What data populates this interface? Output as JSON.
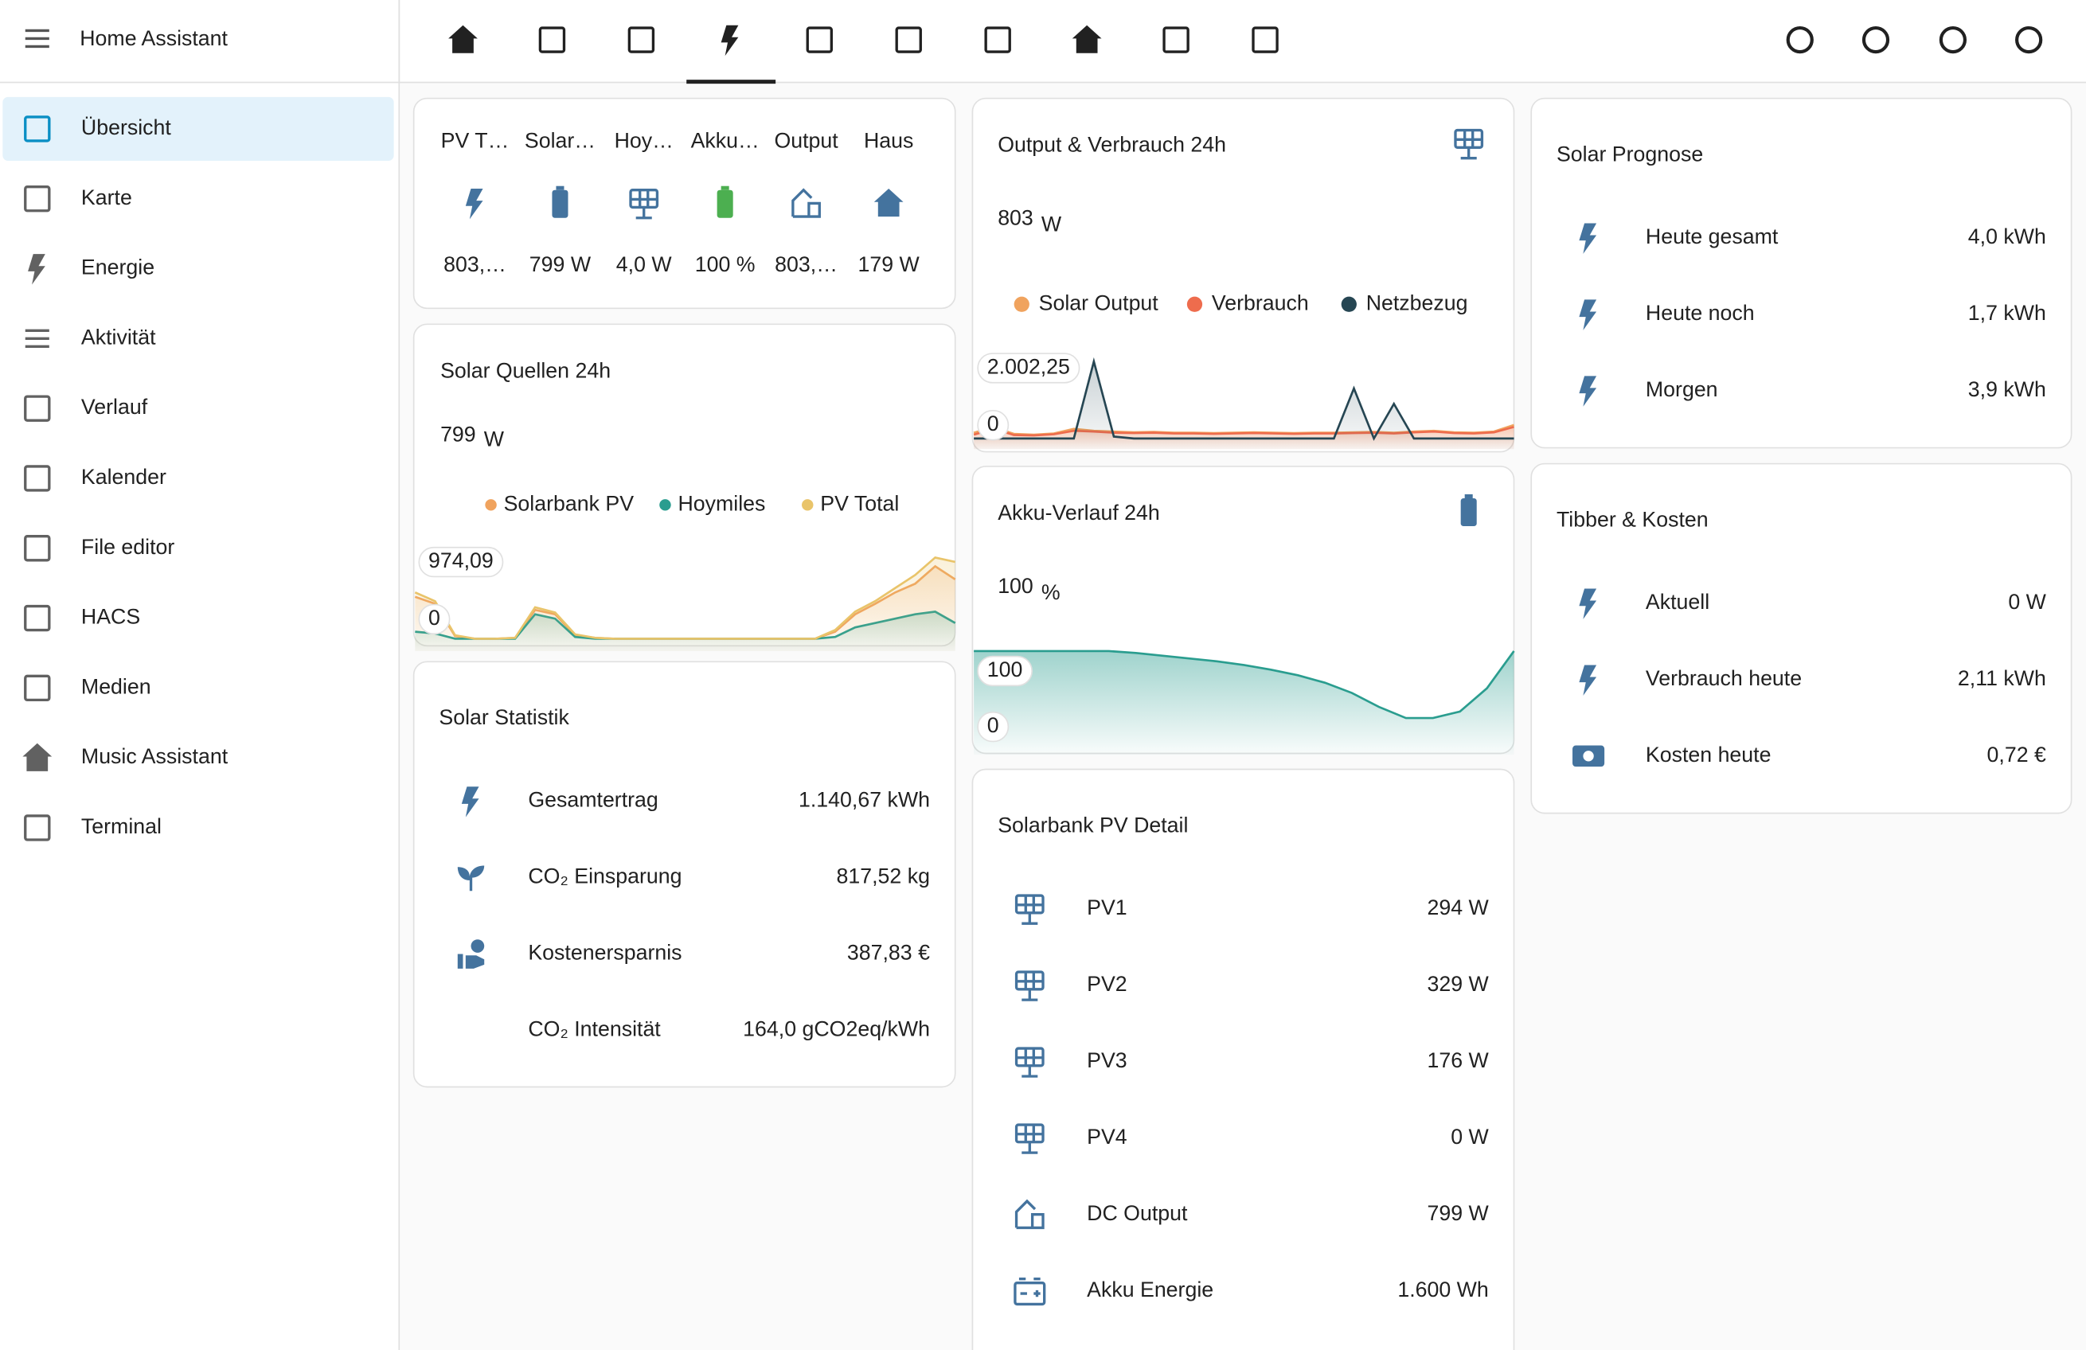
{
  "sidebar": {
    "title": "Home Assistant",
    "items": [
      "Übersicht",
      "Karte",
      "Energie",
      "Aktivität",
      "Verlauf",
      "Kalender",
      "File editor",
      "HACS",
      "Medien",
      "Music Assistant",
      "Terminal"
    ]
  },
  "tiles": [
    {
      "label": "PV T…",
      "value": "803,…"
    },
    {
      "label": "Solar…",
      "value": "799 W"
    },
    {
      "label": "Hoy…",
      "value": "4,0 W"
    },
    {
      "label": "Akku…",
      "value": "100 %"
    },
    {
      "label": "Output",
      "value": "803,…"
    },
    {
      "label": "Haus",
      "value": "179 W"
    }
  ],
  "charts": {
    "output": {
      "title": "Output & Verbrauch 24h",
      "value": "803",
      "unit": "W",
      "yticks": [
        0,
        {
          "value": 2002.25,
          "label": "2.002,25"
        }
      ],
      "series": [
        {
          "name": "Solar Output",
          "color": "#f0a35e",
          "values": [
            150,
            300,
            120,
            100,
            130,
            250,
            200,
            180,
            160,
            170,
            150,
            150,
            140,
            150,
            160,
            150,
            140,
            150,
            150,
            160,
            170,
            150,
            180,
            200,
            160,
            150,
            180,
            350
          ]
        },
        {
          "name": "Verbrauch",
          "color": "#ee6c4d",
          "values": [
            100,
            250,
            90,
            80,
            110,
            200,
            180,
            150,
            140,
            150,
            130,
            130,
            120,
            130,
            140,
            130,
            120,
            130,
            130,
            140,
            150,
            130,
            160,
            180,
            140,
            130,
            160,
            300
          ]
        },
        {
          "name": "Netzbezug",
          "color": "#264653",
          "values": [
            0,
            0,
            0,
            0,
            0,
            0,
            2000,
            50,
            0,
            0,
            0,
            0,
            0,
            0,
            0,
            0,
            0,
            0,
            0,
            1300,
            0,
            900,
            0,
            0,
            0,
            0,
            0,
            0
          ]
        }
      ]
    },
    "quellen": {
      "title": "Solar Quellen 24h",
      "value": "799",
      "unit": "W",
      "yticks": [
        0,
        {
          "value": 974.09,
          "label": "974,09"
        }
      ],
      "series": [
        {
          "name": "Solarbank PV",
          "color": "#f0a35e",
          "values": [
            500,
            420,
            50,
            20,
            20,
            30,
            350,
            300,
            60,
            30,
            20,
            20,
            20,
            20,
            20,
            20,
            20,
            20,
            20,
            20,
            20,
            100,
            300,
            420,
            550,
            650,
            850,
            700
          ]
        },
        {
          "name": "Hoymiles",
          "color": "#2a9d8f",
          "values": [
            100,
            80,
            20,
            20,
            20,
            20,
            300,
            250,
            40,
            20,
            20,
            20,
            20,
            20,
            20,
            20,
            20,
            20,
            20,
            20,
            20,
            40,
            150,
            200,
            250,
            300,
            330,
            200
          ]
        },
        {
          "name": "PV Total",
          "color": "#e9c46a",
          "values": [
            550,
            450,
            60,
            20,
            20,
            30,
            380,
            320,
            70,
            30,
            20,
            20,
            20,
            20,
            20,
            20,
            20,
            20,
            20,
            20,
            20,
            120,
            330,
            450,
            600,
            750,
            950,
            900
          ]
        }
      ]
    },
    "akku": {
      "title": "Akku-Verlauf 24h",
      "value": "100",
      "unit": "%",
      "yticks": [
        0,
        100
      ],
      "series": [
        {
          "color": "#2a9d8f",
          "values": [
            100,
            100,
            100,
            100,
            100,
            100,
            98,
            95,
            92,
            89,
            85,
            80,
            74,
            66,
            55,
            40,
            28,
            28,
            35,
            60,
            100
          ]
        }
      ]
    }
  },
  "cards": {
    "statistik": {
      "title": "Solar Statistik",
      "rows": [
        {
          "name": "Gesamtertrag",
          "value": "1.140,67 kWh"
        },
        {
          "name": "CO₂ Einsparung",
          "value": "817,52 kg"
        },
        {
          "name": "Kostenersparnis",
          "value": "387,83 €"
        },
        {
          "name": "CO₂ Intensität",
          "value": "164,0 gCO2eq/kWh"
        }
      ]
    },
    "solarbank": {
      "title": "Solarbank PV Detail",
      "rows": [
        {
          "name": "PV1",
          "value": "294 W"
        },
        {
          "name": "PV2",
          "value": "329 W"
        },
        {
          "name": "PV3",
          "value": "176 W"
        },
        {
          "name": "PV4",
          "value": "0 W"
        },
        {
          "name": "DC Output",
          "value": "799 W"
        },
        {
          "name": "Akku Energie",
          "value": "1.600 Wh"
        }
      ]
    },
    "prognose": {
      "title": "Solar Prognose",
      "rows": [
        {
          "name": "Heute gesamt",
          "value": "4,0 kWh"
        },
        {
          "name": "Heute noch",
          "value": "1,7 kWh"
        },
        {
          "name": "Morgen",
          "value": "3,9 kWh"
        }
      ]
    },
    "tibber": {
      "title": "Tibber & Kosten",
      "rows": [
        {
          "name": "Aktuell",
          "value": "0 W"
        },
        {
          "name": "Verbrauch heute",
          "value": "2,11 kWh"
        },
        {
          "name": "Kosten heute",
          "value": "0,72 €"
        }
      ]
    }
  }
}
